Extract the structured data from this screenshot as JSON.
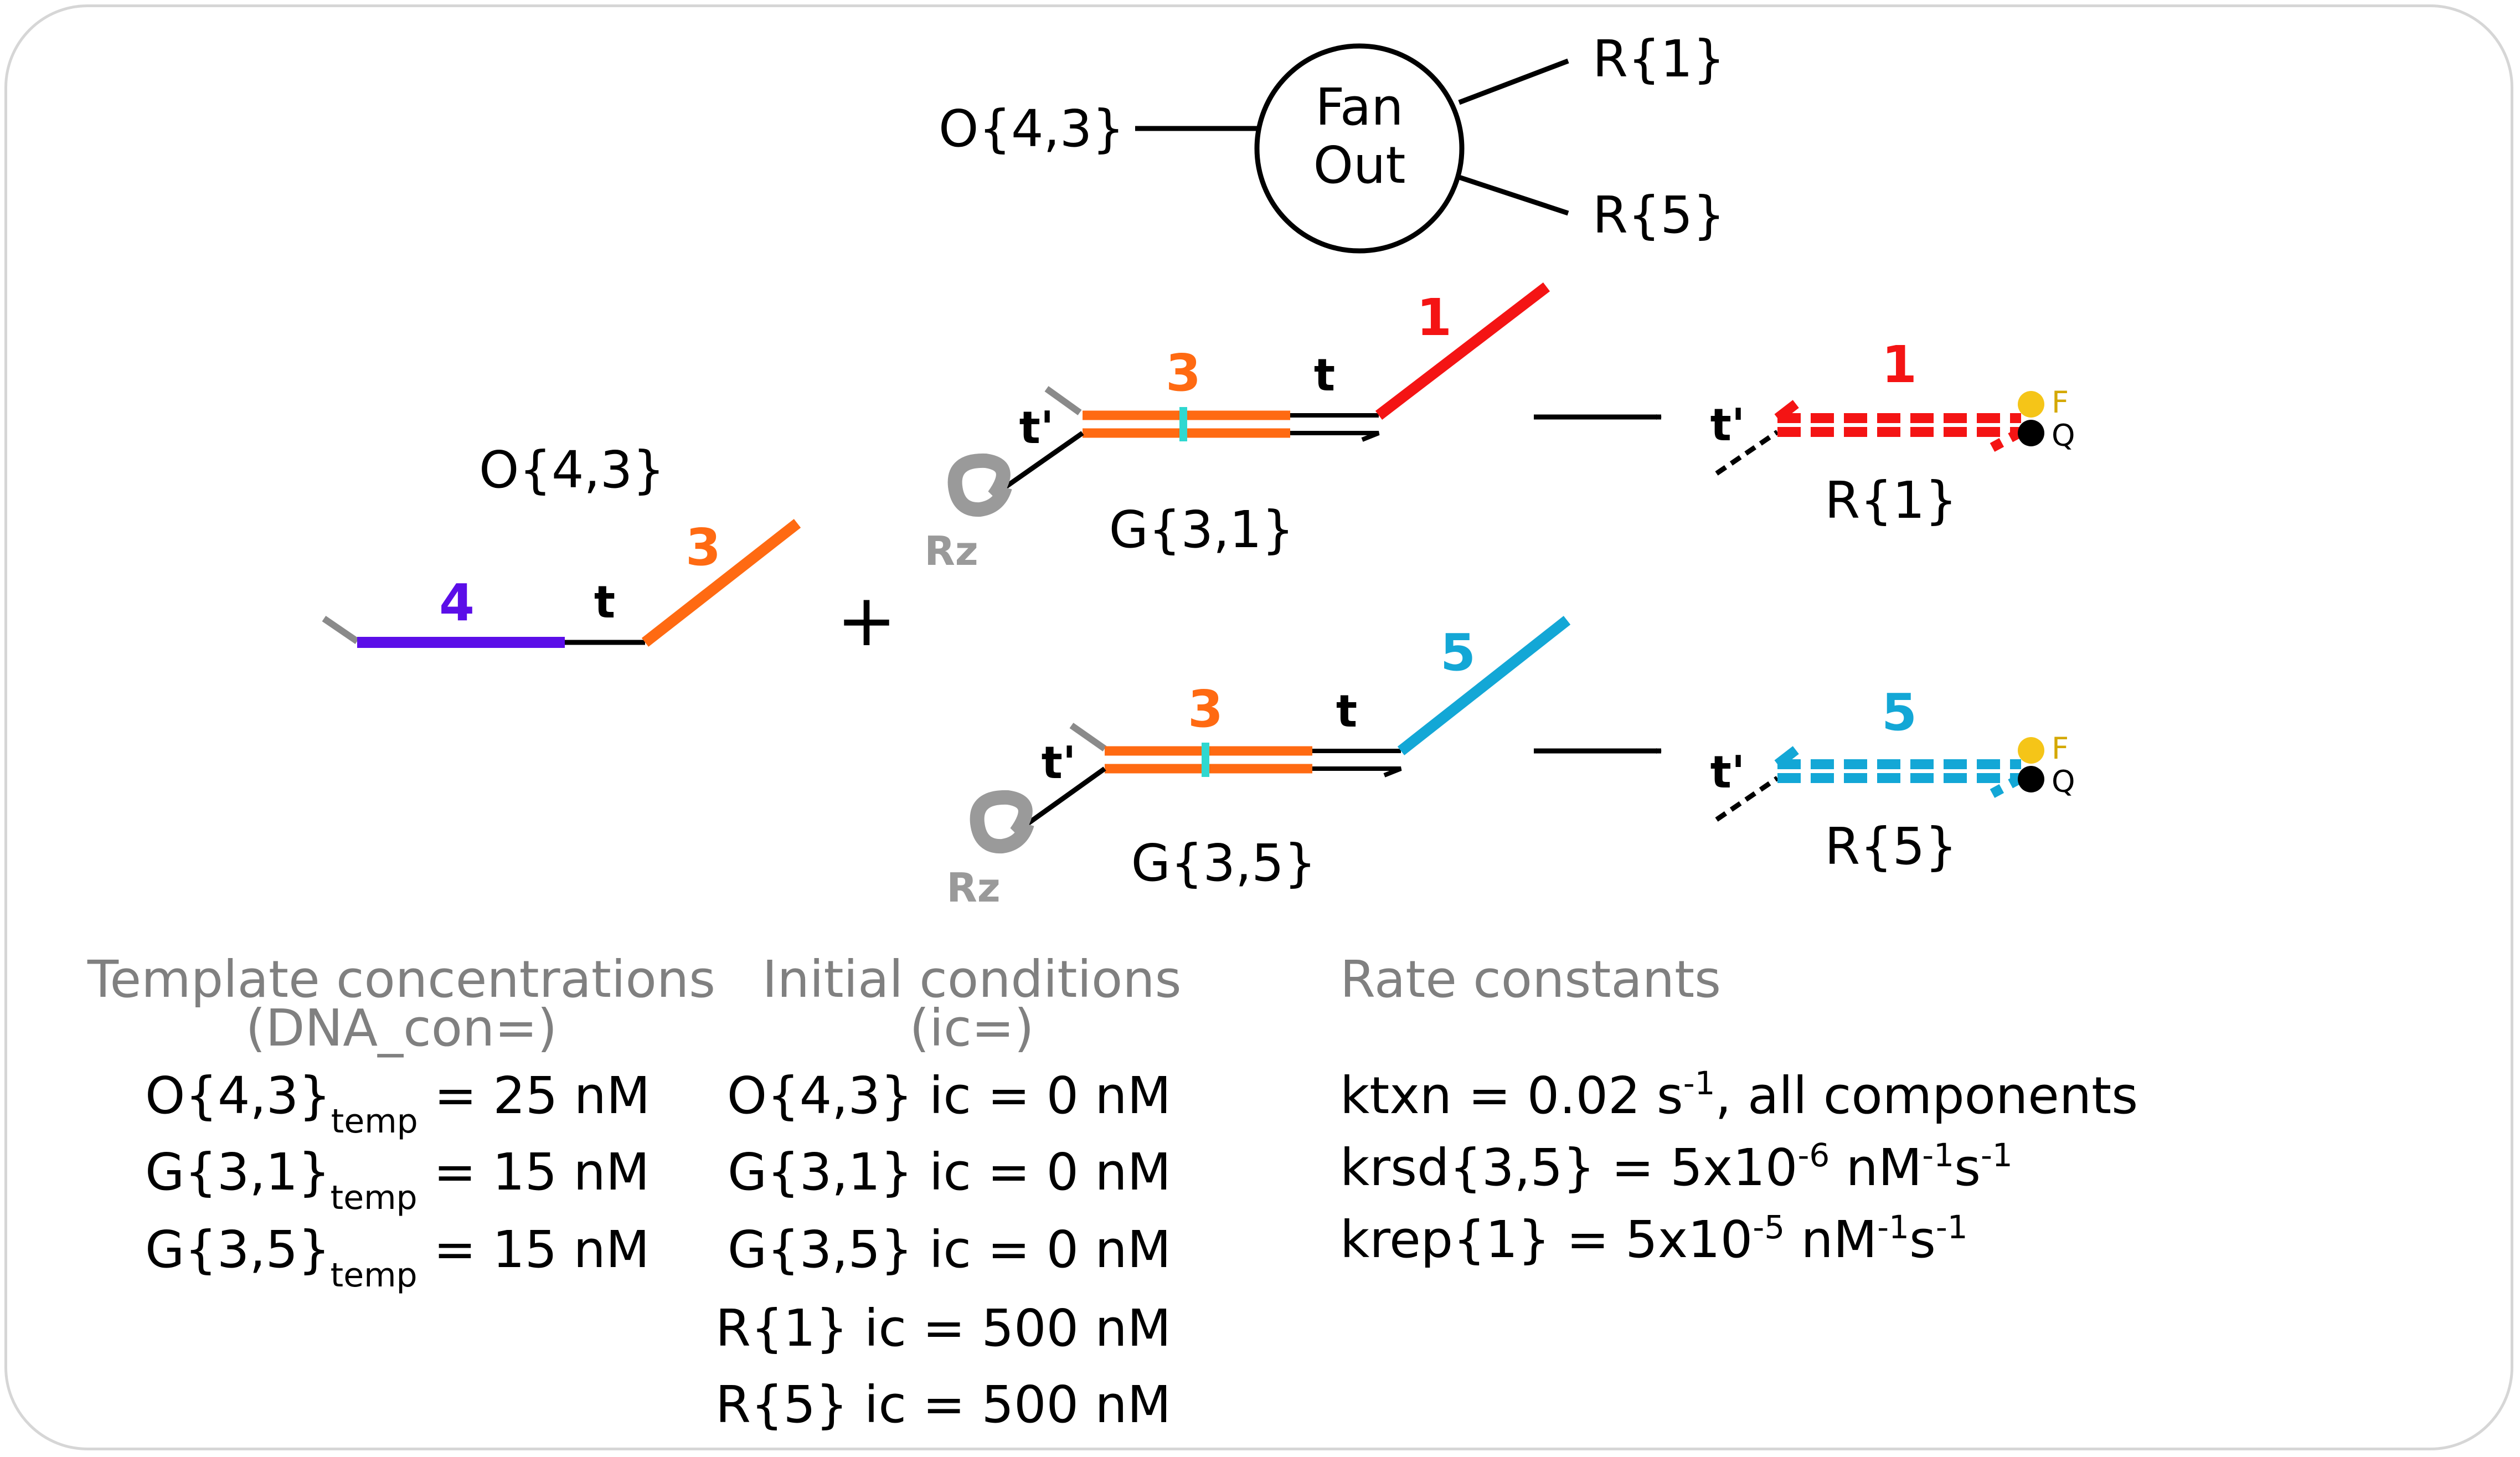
{
  "fanout": {
    "input_label": "O{4,3}",
    "circle_line1": "Fan",
    "circle_line2": "Out",
    "output_top": "R{1}",
    "output_bottom": "R{5}"
  },
  "o_strand": {
    "name": "O{4,3}",
    "domain_left": "4",
    "toehold": "t",
    "domain_right": "3"
  },
  "plus_sign": "+",
  "gate_top": {
    "name": "G{3,1}",
    "toehold_prime": "t'",
    "domain_main": "3",
    "toehold": "t",
    "domain_out": "1",
    "ribozyme": "Rz"
  },
  "gate_bottom": {
    "name": "G{3,5}",
    "toehold_prime": "t'",
    "domain_main": "3",
    "toehold": "t",
    "domain_out": "5",
    "ribozyme": "Rz"
  },
  "reporter_top": {
    "name": "R{1}",
    "toehold_prime": "t'",
    "domain": "1",
    "fluor": "F",
    "quench": "Q"
  },
  "reporter_bottom": {
    "name": "R{5}",
    "toehold_prime": "t'",
    "domain": "5",
    "fluor": "F",
    "quench": "Q"
  },
  "colors": {
    "domain_4": "#5b0ee8",
    "domain_3": "#ff6a12",
    "domain_1": "#f41414",
    "domain_5": "#13a7d6",
    "mismatch": "#2fd8d0",
    "fluorophore": "#f5c518",
    "quencher": "#000000",
    "ribozyme": "#9a9a9a"
  },
  "template": {
    "header_line1": "Template concentrations",
    "header_line2": "(DNA_con=)",
    "rows": [
      {
        "species": "O{4,3}",
        "sub": "temp",
        "value": " = 25 nM"
      },
      {
        "species": "G{3,1}",
        "sub": "temp",
        "value": " = 15 nM"
      },
      {
        "species": "G{3,5}",
        "sub": "temp",
        "value": " = 15 nM"
      }
    ]
  },
  "initial": {
    "header_line1": "Initial conditions",
    "header_line2": "(ic=)",
    "rows": [
      "O{4,3} ic = 0 nM",
      "G{3,1} ic = 0 nM",
      "G{3,5} ic = 0 nM",
      "R{1} ic = 500 nM",
      "R{5} ic = 500 nM"
    ]
  },
  "rates": {
    "header": "Rate constants",
    "ktxn": {
      "prefix": "ktxn = 0.02 s",
      "exp": "-1",
      "suffix": ", all components"
    },
    "krsd": {
      "prefix": "krsd{3,5} = 5x10",
      "exp1": "-6",
      "mid": " nM",
      "exp2": "-1",
      "tail": "s",
      "exp3": "-1"
    },
    "krep": {
      "prefix": "krep{1} = 5x10",
      "exp1": "-5",
      "mid": " nM",
      "exp2": "-1",
      "tail": "s",
      "exp3": "-1"
    }
  }
}
